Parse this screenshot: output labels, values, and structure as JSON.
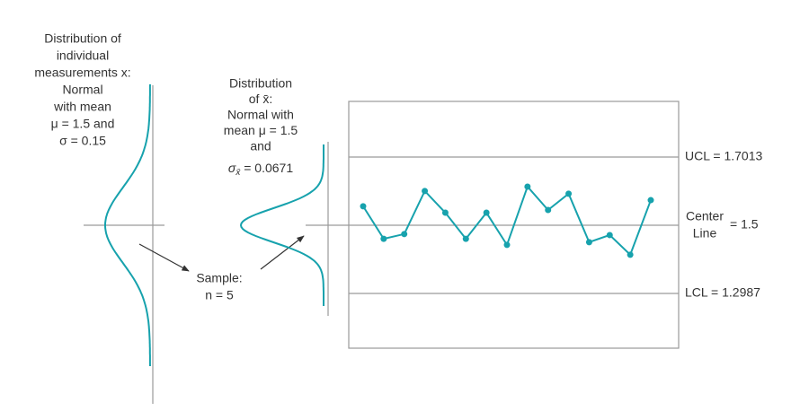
{
  "left_label": {
    "lines": [
      "Distribution of",
      "individual",
      "measurements x:",
      "Normal",
      "with mean",
      "μ = 1.5 and",
      "σ = 0.15"
    ]
  },
  "middle_label": {
    "lines": [
      "Distribution",
      "of x̄:",
      "Normal with",
      "mean μ = 1.5",
      "and"
    ],
    "sigma_line": [
      "σ",
      "x̄",
      " = 0.0671"
    ]
  },
  "sample_label": {
    "lines": [
      "Sample:",
      "n = 5"
    ]
  },
  "chart": {
    "ucl": {
      "label": "UCL = 1.7013",
      "value": 1.7013
    },
    "center": {
      "label": [
        "Center",
        "Line"
      ],
      "suffix": "= 1.5",
      "value": 1.5
    },
    "lcl": {
      "label": "LCL = 1.2987",
      "value": 1.2987
    },
    "values": [
      1.556,
      1.46,
      1.474,
      1.601,
      1.537,
      1.46,
      1.537,
      1.442,
      1.614,
      1.545,
      1.593,
      1.45,
      1.471,
      1.413,
      1.574
    ]
  }
}
